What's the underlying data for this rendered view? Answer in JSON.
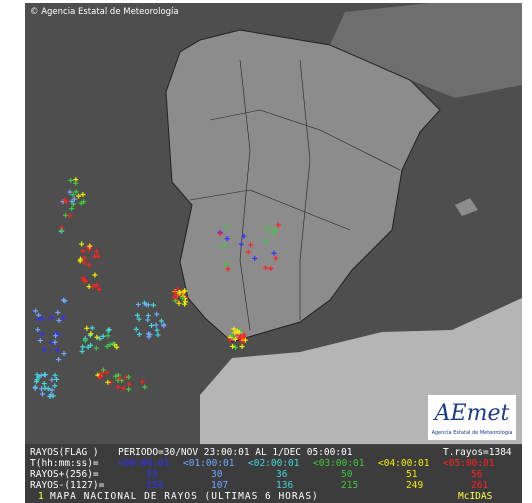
{
  "copyright": "© Agencia Estatal de Meteorología",
  "logo": {
    "name": "AEmet",
    "subtitle": "Agencia Estatal de Meteorología"
  },
  "summary": {
    "label": "RAYOS(FLAG )",
    "period": "PERIODO=30/NOV 23:00:01 AL  1/DEC 05:00:01",
    "total": "T.rayos=1384"
  },
  "table": {
    "rows": [
      [
        "T(hh:mm:ss)=",
        "<00:00:01",
        "<01:00:01",
        "<02:00:01",
        "<03:00:01",
        "<04:00:01",
        "<05:00:01"
      ],
      [
        "RAYOS+(256)=",
        "33",
        "30",
        "36",
        "50",
        "51",
        "56"
      ],
      [
        "RAYOS-(1127)=",
        "159",
        "107",
        "136",
        "215",
        "249",
        "261"
      ]
    ]
  },
  "footer": {
    "index": "1",
    "title": "MAPA NACIONAL DE RAYOS (ULTIMAS 6 HORAS)",
    "system": "McIDAS"
  }
}
